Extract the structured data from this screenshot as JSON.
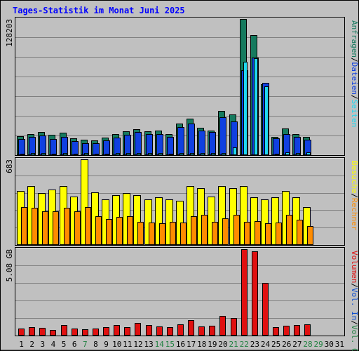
{
  "title": "Tages-Statistik im Monat Juni 2025",
  "colors": {
    "background": "#c0c0c0",
    "title": "#0000ff",
    "anfragen": "#157a5e",
    "dateien": "#1040e0",
    "seiten": "#20d8f0",
    "besuche": "#ffff00",
    "rechner": "#ff8c00",
    "kbytes": "#e01010",
    "day_weekday": "#000000",
    "day_weekend": "#208040",
    "label_out": "#208040",
    "label_in": "#1050d0",
    "label_vol": "#e01010",
    "grid": "#808080"
  },
  "chart_data": [
    {
      "type": "bar",
      "panel": "hits",
      "ymax_label": "128203",
      "ylim": [
        0,
        128203
      ],
      "side_labels": [
        {
          "text": "Anfragen",
          "color_key": "anfragen"
        },
        {
          "text": "/",
          "color_key": "day_weekday"
        },
        {
          "text": "Dateien",
          "color_key": "dateien"
        },
        {
          "text": "/",
          "color_key": "day_weekday"
        },
        {
          "text": "Seiten",
          "color_key": "seiten"
        }
      ],
      "categories": [
        "1",
        "2",
        "3",
        "4",
        "5",
        "6",
        "7",
        "8",
        "9",
        "10",
        "11",
        "12",
        "13",
        "14",
        "15",
        "16",
        "17",
        "18",
        "19",
        "20",
        "21",
        "22",
        "23",
        "24",
        "25",
        "26",
        "27",
        "28",
        "29",
        "30",
        "31"
      ],
      "series": [
        {
          "name": "Anfragen",
          "color_key": "anfragen",
          "values": [
            18000,
            19500,
            22000,
            19000,
            21000,
            16000,
            14500,
            14000,
            16500,
            19500,
            22500,
            24500,
            22500,
            23000,
            20000,
            29500,
            34500,
            26000,
            23000,
            41500,
            38500,
            128203,
            113000,
            66500,
            17500,
            25000,
            20000,
            17500,
            0,
            0,
            0
          ]
        },
        {
          "name": "Dateien",
          "color_key": "dateien",
          "values": [
            15000,
            17500,
            18500,
            15000,
            17500,
            13000,
            11500,
            11500,
            14000,
            16500,
            19000,
            22000,
            20000,
            19500,
            17500,
            26500,
            30000,
            23000,
            22000,
            36000,
            31500,
            80000,
            92000,
            68000,
            16000,
            20000,
            17000,
            14500,
            0,
            0,
            0
          ]
        },
        {
          "name": "Seiten",
          "color_key": "seiten",
          "values": [
            1500,
            1800,
            1800,
            1500,
            2000,
            1600,
            2000,
            1200,
            1200,
            1800,
            1800,
            2000,
            2000,
            1800,
            1500,
            1800,
            2000,
            1800,
            1800,
            2000,
            7000,
            88000,
            91000,
            65000,
            1500,
            2500,
            2000,
            2500,
            0,
            0,
            0
          ]
        }
      ]
    },
    {
      "type": "bar",
      "panel": "visits",
      "ymax_label": "683",
      "ylim": [
        0,
        683
      ],
      "side_labels": [
        {
          "text": "Besuche",
          "color_key": "besuche"
        },
        {
          "text": "/",
          "color_key": "day_weekday"
        },
        {
          "text": "Rechner",
          "color_key": "rechner"
        }
      ],
      "categories": [
        "1",
        "2",
        "3",
        "4",
        "5",
        "6",
        "7",
        "8",
        "9",
        "10",
        "11",
        "12",
        "13",
        "14",
        "15",
        "16",
        "17",
        "18",
        "19",
        "20",
        "21",
        "22",
        "23",
        "24",
        "25",
        "26",
        "27",
        "28",
        "29",
        "30",
        "31"
      ],
      "series": [
        {
          "name": "Besuche",
          "color_key": "besuche",
          "values": [
            433,
            468,
            413,
            442,
            468,
            389,
            683,
            420,
            363,
            400,
            413,
            400,
            363,
            381,
            363,
            355,
            468,
            454,
            389,
            468,
            454,
            468,
            381,
            363,
            381,
            433,
            381,
            300,
            0,
            0,
            0
          ]
        },
        {
          "name": "Rechner",
          "color_key": "rechner",
          "values": [
            303,
            295,
            269,
            269,
            295,
            269,
            303,
            231,
            206,
            222,
            231,
            186,
            178,
            173,
            186,
            178,
            231,
            243,
            186,
            211,
            243,
            186,
            193,
            171,
            178,
            243,
            202,
            151,
            0,
            0,
            0
          ]
        }
      ]
    },
    {
      "type": "bar",
      "panel": "volume",
      "ymax_label": "5.08 GB",
      "ylim": [
        0,
        5.08
      ],
      "side_labels": [
        {
          "text": "Volumen",
          "color_key": "kbytes"
        },
        {
          "text": "/",
          "color_key": "day_weekday"
        },
        {
          "text": "Vol. In",
          "color_key": "label_in"
        },
        {
          "text": "/",
          "color_key": "day_weekday"
        },
        {
          "text": "Vol. Out",
          "color_key": "label_out"
        }
      ],
      "categories": [
        "1",
        "2",
        "3",
        "4",
        "5",
        "6",
        "7",
        "8",
        "9",
        "10",
        "11",
        "12",
        "13",
        "14",
        "15",
        "16",
        "17",
        "18",
        "19",
        "20",
        "21",
        "22",
        "23",
        "24",
        "25",
        "26",
        "27",
        "28",
        "29",
        "30",
        "31"
      ],
      "series": [
        {
          "name": "Volumen",
          "color_key": "kbytes",
          "values": [
            0.42,
            0.51,
            0.46,
            0.34,
            0.64,
            0.42,
            0.38,
            0.42,
            0.51,
            0.64,
            0.51,
            0.73,
            0.64,
            0.55,
            0.51,
            0.68,
            0.91,
            0.55,
            0.59,
            1.14,
            1.05,
            5.08,
            4.97,
            3.09,
            0.51,
            0.59,
            0.64,
            0.68,
            0,
            0,
            0
          ]
        }
      ]
    }
  ],
  "weekend_days": [
    "7",
    "14",
    "15",
    "21",
    "22",
    "28",
    "29"
  ]
}
